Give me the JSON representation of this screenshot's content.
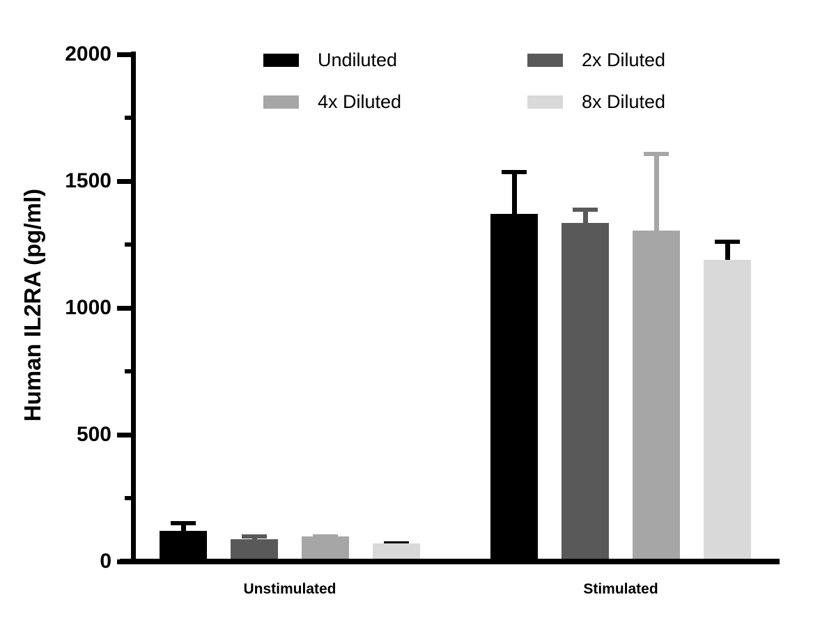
{
  "chart_data": {
    "type": "bar",
    "title": "",
    "ylabel": "Human IL2RA (pg/ml)",
    "xlabel": "",
    "categories": [
      "Unstimulated",
      "Stimulated"
    ],
    "series": [
      {
        "name": "Undiluted",
        "color": "#000000",
        "error_color": "#000000",
        "values": [
          122,
          1370
        ],
        "errors": [
          38,
          175
        ]
      },
      {
        "name": "2x Diluted",
        "color": "#595959",
        "error_color": "#595959",
        "values": [
          87,
          1335
        ],
        "errors": [
          20,
          60
        ]
      },
      {
        "name": "4x Diluted",
        "color": "#a6a6a6",
        "error_color": "#a6a6a6",
        "values": [
          100,
          1305
        ],
        "errors": [
          8,
          310
        ]
      },
      {
        "name": "8x Diluted",
        "color": "#d9d9d9",
        "error_color": "#000000",
        "values": [
          71,
          1190
        ],
        "errors": [
          8,
          80
        ]
      }
    ],
    "ylim": [
      0,
      2000
    ],
    "y_major_ticks": [
      0,
      500,
      1000,
      1500,
      2000
    ],
    "y_minor_ticks": [
      250,
      750,
      1250,
      1750
    ],
    "error_bars": "upper SD only",
    "legend_position": "top, two columns",
    "grid": false,
    "background_color": "#ffffff",
    "axis_color": "#000000"
  }
}
